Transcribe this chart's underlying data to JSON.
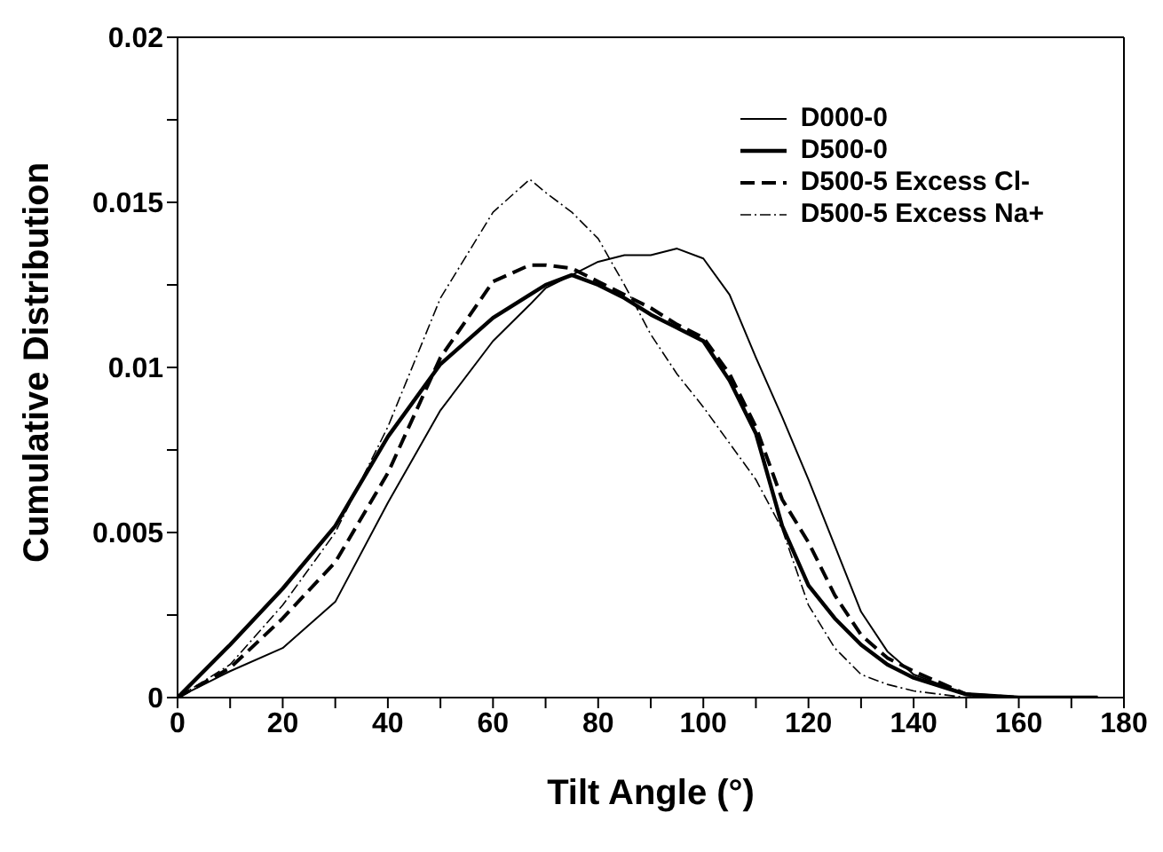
{
  "chart_data": {
    "type": "line",
    "xlabel": "Tilt Angle (°)",
    "ylabel": "Cumulative Distribution",
    "x": [
      0,
      10,
      20,
      30,
      40,
      50,
      60,
      67,
      70,
      75,
      80,
      85,
      90,
      95,
      100,
      105,
      110,
      115,
      120,
      125,
      130,
      135,
      140,
      150,
      160,
      175
    ],
    "series": [
      {
        "name": "D000-0",
        "color": "#000000",
        "line_style": "solid",
        "values": [
          0,
          0.0008,
          0.0015,
          0.0029,
          0.0059,
          0.0087,
          0.0108,
          0.0119,
          0.0124,
          0.0128,
          0.0132,
          0.0134,
          0.0134,
          0.0136,
          0.0133,
          0.0122,
          0.0103,
          0.0085,
          0.0066,
          0.0046,
          0.0026,
          0.0014,
          0.0007,
          0.0001,
          0,
          0
        ]
      },
      {
        "name": "D500-0",
        "color": "#000000",
        "line_style": "solid",
        "values": [
          0,
          0.0016,
          0.0033,
          0.0052,
          0.0079,
          0.0101,
          0.0115,
          0.0122,
          0.0125,
          0.0128,
          0.0125,
          0.0121,
          0.0116,
          0.0112,
          0.0108,
          0.0096,
          0.008,
          0.0052,
          0.0034,
          0.0024,
          0.0016,
          0.001,
          0.0006,
          0.0001,
          0,
          0
        ]
      },
      {
        "name": "D500-5 Excess Cl-",
        "color": "#000000",
        "line_style": "dashed",
        "values": [
          0,
          0.0009,
          0.0024,
          0.0041,
          0.0068,
          0.0103,
          0.0126,
          0.0131,
          0.0131,
          0.013,
          0.0126,
          0.0122,
          0.0118,
          0.0113,
          0.0109,
          0.0098,
          0.0082,
          0.006,
          0.0047,
          0.0031,
          0.0019,
          0.0012,
          0.0008,
          0.0001,
          0,
          0
        ]
      },
      {
        "name": "D500-5 Excess Na+",
        "color": "#000000",
        "line_style": "dotted",
        "values": [
          0,
          0.001,
          0.0028,
          0.005,
          0.0082,
          0.0121,
          0.0147,
          0.0157,
          0.0153,
          0.0147,
          0.0139,
          0.0125,
          0.011,
          0.0098,
          0.0088,
          0.0077,
          0.0066,
          0.0051,
          0.0028,
          0.0015,
          0.0007,
          0.0004,
          0.0002,
          0,
          0,
          0
        ]
      }
    ],
    "xlim": [
      0,
      180
    ],
    "xticks": [
      0,
      {
        "value": 10,
        "label": null
      },
      20,
      {
        "value": 30,
        "label": null
      },
      40,
      {
        "value": 50,
        "label": null
      },
      60,
      {
        "value": 70,
        "label": null
      },
      80,
      {
        "value": 90,
        "label": null
      },
      100,
      {
        "value": 110,
        "label": null
      },
      120,
      {
        "value": 130,
        "label": null
      },
      140,
      {
        "value": 150,
        "label": null
      },
      160,
      {
        "value": 170,
        "label": null
      },
      180
    ],
    "ylim": [
      0,
      0.02
    ],
    "yticks": [
      0,
      {
        "value": 0.0025,
        "label": null
      },
      0.005,
      {
        "value": 0.0075,
        "label": null
      },
      0.01,
      {
        "value": 0.0125,
        "label": null
      },
      0.015,
      {
        "value": 0.0175,
        "label": null
      },
      0.02
    ],
    "grid": false,
    "legend": "top right",
    "marker": "none"
  }
}
